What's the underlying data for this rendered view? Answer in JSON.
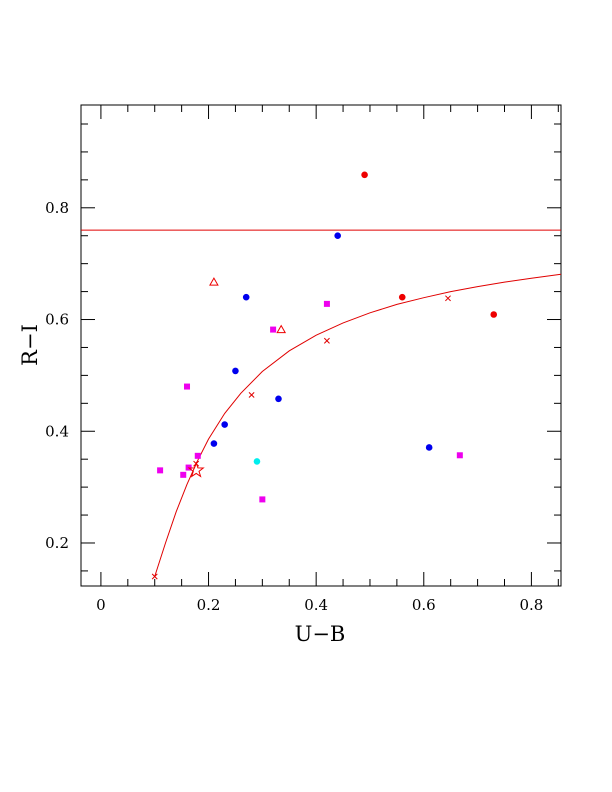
{
  "chart_data": {
    "type": "scatter",
    "xlabel": "U−B",
    "ylabel": "R−I",
    "xlim": [
      -0.037,
      0.855
    ],
    "ylim": [
      0.123,
      0.984
    ],
    "x_ticks": [
      {
        "value": 0,
        "label": "0"
      },
      {
        "value": 0.2,
        "label": "0.2"
      },
      {
        "value": 0.4,
        "label": "0.4"
      },
      {
        "value": 0.6,
        "label": "0.6"
      },
      {
        "value": 0.8,
        "label": "0.8"
      }
    ],
    "y_ticks": [
      {
        "value": 0.2,
        "label": "0.2"
      },
      {
        "value": 0.4,
        "label": "0.4"
      },
      {
        "value": 0.6,
        "label": "0.6"
      },
      {
        "value": 0.8,
        "label": "0.8"
      }
    ],
    "x_minor_step": 0.05,
    "y_minor_step": 0.05,
    "grid": false,
    "hline": {
      "y": 0.76,
      "color": "#e00000"
    },
    "curve": {
      "color": "#e00000",
      "points": [
        [
          0.1,
          0.14
        ],
        [
          0.12,
          0.2
        ],
        [
          0.14,
          0.256
        ],
        [
          0.16,
          0.305
        ],
        [
          0.18,
          0.348
        ],
        [
          0.2,
          0.386
        ],
        [
          0.23,
          0.432
        ],
        [
          0.26,
          0.468
        ],
        [
          0.3,
          0.507
        ],
        [
          0.35,
          0.544
        ],
        [
          0.4,
          0.572
        ],
        [
          0.45,
          0.594
        ],
        [
          0.5,
          0.612
        ],
        [
          0.55,
          0.627
        ],
        [
          0.6,
          0.639
        ],
        [
          0.65,
          0.65
        ],
        [
          0.7,
          0.659
        ],
        [
          0.75,
          0.667
        ],
        [
          0.8,
          0.674
        ],
        [
          0.855,
          0.681
        ]
      ],
      "markers": [
        [
          0.1,
          0.14
        ],
        [
          0.177,
          0.342
        ],
        [
          0.28,
          0.465
        ],
        [
          0.42,
          0.562
        ],
        [
          0.645,
          0.638
        ]
      ]
    },
    "series": [
      {
        "marker": "circle",
        "color": "#0000ee",
        "points": [
          [
            0.21,
            0.378
          ],
          [
            0.23,
            0.412
          ],
          [
            0.25,
            0.508
          ],
          [
            0.27,
            0.64
          ],
          [
            0.33,
            0.458
          ],
          [
            0.44,
            0.75
          ],
          [
            0.61,
            0.371
          ]
        ]
      },
      {
        "marker": "circle",
        "color": "#ee0000",
        "points": [
          [
            0.49,
            0.859
          ],
          [
            0.56,
            0.64
          ],
          [
            0.73,
            0.609
          ]
        ]
      },
      {
        "marker": "circle",
        "color": "#00eeee",
        "points": [
          [
            0.29,
            0.346
          ]
        ]
      },
      {
        "marker": "square",
        "color": "#ee00ee",
        "points": [
          [
            0.11,
            0.33
          ],
          [
            0.153,
            0.322
          ],
          [
            0.163,
            0.335
          ],
          [
            0.16,
            0.48
          ],
          [
            0.18,
            0.356
          ],
          [
            0.3,
            0.278
          ],
          [
            0.32,
            0.582
          ],
          [
            0.42,
            0.628
          ],
          [
            0.667,
            0.357
          ]
        ]
      },
      {
        "marker": "triangle",
        "color": "#ee0000",
        "points": [
          [
            0.21,
            0.667
          ],
          [
            0.335,
            0.582
          ]
        ]
      },
      {
        "marker": "star",
        "color": "#ee0000",
        "points": [
          [
            0.177,
            0.33
          ]
        ]
      }
    ]
  }
}
